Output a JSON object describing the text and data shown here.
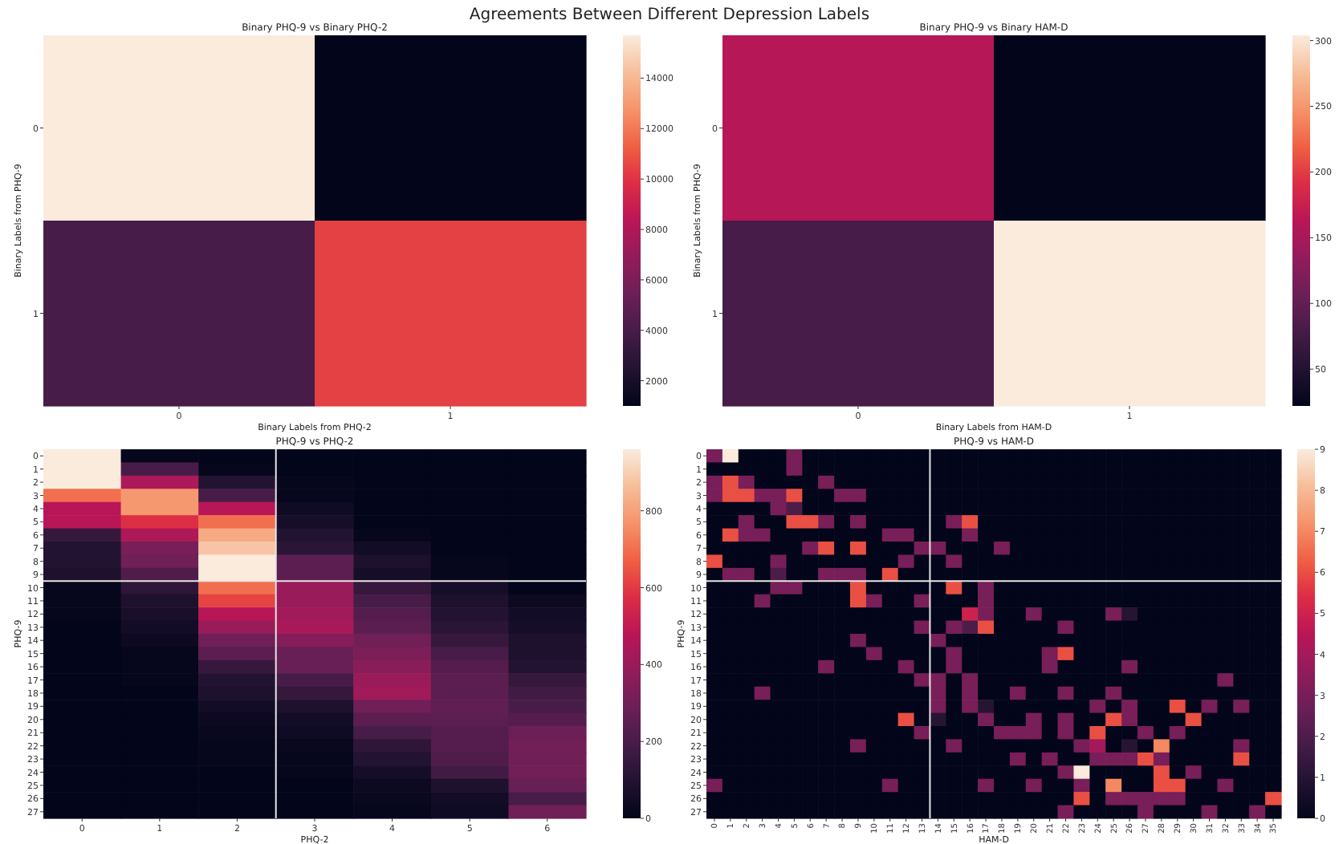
{
  "chart_data": [
    {
      "type": "other",
      "title": "Agreements Between Different Depression Labels"
    },
    {
      "type": "heatmap",
      "title": "Binary PHQ-9 vs Binary PHQ-2",
      "xlabel": "Binary Labels from PHQ-2",
      "ylabel": "Binary Labels from PHQ-9",
      "categories": [
        "0",
        "1"
      ],
      "y_categories": [
        "0",
        "1"
      ],
      "cells": [
        [
          15700,
          1000
        ],
        [
          4000,
          10400
        ]
      ],
      "clim": [
        1000,
        15700
      ],
      "cticks": [
        2000,
        4000,
        6000,
        8000,
        10000,
        12000,
        14000
      ]
    },
    {
      "type": "heatmap",
      "title": "Binary PHQ-9 vs Binary HAM-D",
      "xlabel": "Binary Labels from HAM-D",
      "ylabel": "Binary Labels from PHQ-9",
      "categories": [
        "0",
        "1"
      ],
      "y_categories": [
        "0",
        "1"
      ],
      "cells": [
        [
          160,
          22
        ],
        [
          80,
          304
        ]
      ],
      "clim": [
        22,
        304
      ],
      "cticks": [
        50,
        100,
        150,
        200,
        250,
        300
      ]
    },
    {
      "type": "heatmap",
      "title": "PHQ-9 vs PHQ-2",
      "xlabel": "PHQ-2",
      "ylabel": "PHQ-9",
      "categories": [
        "0",
        "1",
        "2",
        "3",
        "4",
        "5",
        "6"
      ],
      "y_categories": [
        "0",
        "1",
        "2",
        "3",
        "4",
        "5",
        "6",
        "7",
        "8",
        "9",
        "10",
        "11",
        "12",
        "13",
        "14",
        "15",
        "16",
        "17",
        "18",
        "19",
        "20",
        "21",
        "22",
        "23",
        "24",
        "25",
        "26",
        "27"
      ],
      "cells": [
        [
          960,
          10,
          0,
          0,
          0,
          0,
          0
        ],
        [
          960,
          200,
          10,
          0,
          0,
          0,
          0
        ],
        [
          960,
          450,
          100,
          10,
          0,
          0,
          0
        ],
        [
          700,
          780,
          200,
          10,
          0,
          0,
          0
        ],
        [
          480,
          780,
          480,
          40,
          0,
          0,
          0
        ],
        [
          480,
          580,
          700,
          60,
          0,
          0,
          0
        ],
        [
          150,
          450,
          820,
          100,
          10,
          0,
          0
        ],
        [
          100,
          320,
          880,
          120,
          50,
          0,
          0
        ],
        [
          100,
          300,
          960,
          250,
          80,
          10,
          0
        ],
        [
          80,
          220,
          960,
          250,
          60,
          10,
          0
        ],
        [
          10,
          130,
          700,
          400,
          150,
          60,
          0
        ],
        [
          10,
          80,
          620,
          400,
          200,
          80,
          30
        ],
        [
          10,
          70,
          480,
          420,
          230,
          100,
          50
        ],
        [
          0,
          50,
          400,
          440,
          250,
          120,
          60
        ],
        [
          0,
          30,
          300,
          350,
          300,
          150,
          80
        ],
        [
          0,
          10,
          250,
          280,
          330,
          200,
          80
        ],
        [
          0,
          10,
          150,
          280,
          360,
          230,
          100
        ],
        [
          0,
          10,
          100,
          200,
          400,
          250,
          150
        ],
        [
          0,
          0,
          80,
          150,
          420,
          250,
          180
        ],
        [
          0,
          0,
          50,
          80,
          300,
          260,
          200
        ],
        [
          0,
          0,
          30,
          50,
          250,
          250,
          230
        ],
        [
          0,
          0,
          20,
          40,
          200,
          230,
          290
        ],
        [
          0,
          0,
          10,
          20,
          130,
          230,
          300
        ],
        [
          0,
          0,
          10,
          10,
          100,
          220,
          300
        ],
        [
          0,
          0,
          0,
          10,
          60,
          180,
          300
        ],
        [
          0,
          0,
          0,
          0,
          30,
          80,
          280
        ],
        [
          0,
          0,
          0,
          0,
          20,
          50,
          200
        ],
        [
          0,
          0,
          0,
          0,
          10,
          40,
          300
        ]
      ],
      "clim": [
        0,
        960
      ],
      "cticks": [
        0,
        200,
        400,
        600,
        800
      ]
    },
    {
      "type": "heatmap",
      "title": "PHQ-9 vs HAM-D",
      "xlabel": "HAM-D",
      "ylabel": "PHQ-9",
      "categories": [
        "0",
        "1",
        "2",
        "3",
        "4",
        "5",
        "6",
        "7",
        "8",
        "9",
        "10",
        "11",
        "12",
        "13",
        "14",
        "15",
        "16",
        "17",
        "18",
        "19",
        "20",
        "21",
        "22",
        "23",
        "24",
        "25",
        "26",
        "27",
        "28",
        "29",
        "30",
        "31",
        "32",
        "33",
        "34",
        "35"
      ],
      "y_categories": [
        "0",
        "1",
        "2",
        "3",
        "4",
        "5",
        "6",
        "7",
        "8",
        "9",
        "10",
        "11",
        "12",
        "13",
        "14",
        "15",
        "16",
        "17",
        "18",
        "19",
        "20",
        "21",
        "22",
        "23",
        "24",
        "25",
        "26",
        "27"
      ],
      "cells": [
        [
          3,
          9,
          0,
          0,
          0,
          3,
          0,
          0,
          0,
          0,
          0,
          0,
          0,
          0,
          0,
          0,
          0,
          0,
          0,
          0,
          0,
          0,
          0,
          0,
          0,
          0,
          0,
          0,
          0,
          0,
          0,
          0,
          0,
          0,
          0,
          0
        ],
        [
          0,
          0,
          0,
          0,
          0,
          3,
          0,
          0,
          0,
          0,
          0,
          0,
          0,
          0,
          0,
          0,
          0,
          0,
          0,
          0,
          0,
          0,
          0,
          0,
          0,
          0,
          0,
          0,
          0,
          0,
          0,
          0,
          0,
          0,
          0,
          0
        ],
        [
          3,
          6,
          3,
          0,
          0,
          0,
          0,
          3,
          0,
          0,
          0,
          0,
          0,
          0,
          0,
          0,
          0,
          0,
          0,
          0,
          0,
          0,
          0,
          0,
          0,
          0,
          0,
          0,
          0,
          0,
          0,
          0,
          0,
          0,
          0,
          0
        ],
        [
          3,
          6,
          6,
          3,
          3,
          6,
          0,
          0,
          3,
          3,
          0,
          0,
          0,
          0,
          0,
          0,
          0,
          0,
          0,
          0,
          0,
          0,
          0,
          0,
          0,
          0,
          0,
          0,
          0,
          0,
          0,
          0,
          0,
          0,
          0,
          0
        ],
        [
          0,
          0,
          0,
          0,
          3,
          2,
          0,
          0,
          0,
          0,
          0,
          0,
          0,
          0,
          0,
          0,
          0,
          0,
          0,
          0,
          0,
          0,
          0,
          0,
          0,
          0,
          0,
          0,
          0,
          0,
          0,
          0,
          0,
          0,
          0,
          0
        ],
        [
          0,
          0,
          3,
          0,
          0,
          6,
          6,
          3,
          0,
          3,
          0,
          0,
          0,
          0,
          0,
          3,
          6,
          0,
          0,
          0,
          0,
          0,
          0,
          0,
          0,
          0,
          0,
          0,
          0,
          0,
          0,
          0,
          0,
          0,
          0,
          0
        ],
        [
          0,
          6,
          3,
          3,
          0,
          0,
          0,
          0,
          0,
          0,
          0,
          3,
          3,
          0,
          0,
          0,
          3,
          0,
          0,
          0,
          0,
          0,
          0,
          0,
          0,
          0,
          0,
          0,
          0,
          0,
          0,
          0,
          0,
          0,
          0,
          0
        ],
        [
          0,
          0,
          0,
          0,
          0,
          0,
          3,
          6,
          0,
          6,
          0,
          0,
          0,
          3,
          3,
          0,
          0,
          0,
          3,
          0,
          0,
          0,
          0,
          0,
          0,
          0,
          0,
          0,
          0,
          0,
          0,
          0,
          0,
          0,
          0,
          0
        ],
        [
          6,
          0,
          0,
          0,
          3,
          0,
          0,
          0,
          0,
          0,
          0,
          0,
          3,
          0,
          0,
          3,
          0,
          0,
          0,
          0,
          0,
          0,
          0,
          0,
          0,
          0,
          0,
          0,
          0,
          0,
          0,
          0,
          0,
          0,
          0,
          0
        ],
        [
          0,
          3,
          3,
          0,
          2,
          0,
          0,
          3,
          3,
          3,
          0,
          6,
          0,
          0,
          0,
          0,
          0,
          0,
          0,
          0,
          0,
          0,
          0,
          0,
          0,
          0,
          0,
          0,
          0,
          0,
          0,
          0,
          0,
          0,
          0,
          0
        ],
        [
          0,
          0,
          0,
          0,
          3,
          3,
          0,
          0,
          0,
          6,
          0,
          0,
          0,
          0,
          0,
          6,
          0,
          3,
          0,
          0,
          0,
          0,
          0,
          0,
          0,
          0,
          0,
          0,
          0,
          0,
          0,
          0,
          0,
          0,
          0,
          0
        ],
        [
          0,
          0,
          0,
          3,
          0,
          0,
          0,
          0,
          0,
          6,
          3,
          0,
          0,
          3,
          0,
          0,
          0,
          3,
          0,
          0,
          0,
          0,
          0,
          0,
          0,
          0,
          0,
          0,
          0,
          0,
          0,
          0,
          0,
          0,
          0,
          0
        ],
        [
          0,
          0,
          0,
          0,
          0,
          0,
          0,
          0,
          0,
          0,
          0,
          0,
          0,
          0,
          0,
          0,
          5,
          3,
          0,
          0,
          3,
          0,
          0,
          0,
          0,
          3,
          1,
          0,
          0,
          0,
          0,
          0,
          0,
          0,
          0,
          0
        ],
        [
          0,
          0,
          0,
          0,
          0,
          0,
          0,
          0,
          0,
          0,
          0,
          0,
          0,
          3,
          0,
          3,
          2,
          6,
          0,
          0,
          0,
          0,
          3,
          0,
          0,
          0,
          0,
          0,
          0,
          0,
          0,
          0,
          0,
          0,
          0,
          0
        ],
        [
          0,
          0,
          0,
          0,
          0,
          0,
          0,
          0,
          0,
          3,
          0,
          0,
          0,
          0,
          3,
          0,
          0,
          0,
          0,
          0,
          0,
          0,
          0,
          0,
          0,
          0,
          0,
          0,
          0,
          0,
          0,
          0,
          0,
          0,
          0,
          0
        ],
        [
          0,
          0,
          0,
          0,
          0,
          0,
          0,
          0,
          0,
          0,
          3,
          0,
          0,
          0,
          0,
          3,
          0,
          0,
          0,
          0,
          0,
          3,
          6,
          0,
          0,
          0,
          0,
          0,
          0,
          0,
          0,
          0,
          0,
          0,
          0,
          0
        ],
        [
          0,
          0,
          0,
          0,
          0,
          0,
          0,
          3,
          0,
          0,
          0,
          0,
          3,
          0,
          0,
          3,
          0,
          0,
          0,
          0,
          0,
          3,
          0,
          0,
          0,
          0,
          3,
          0,
          0,
          0,
          0,
          0,
          0,
          0,
          0,
          0
        ],
        [
          0,
          0,
          0,
          0,
          0,
          0,
          0,
          0,
          0,
          0,
          0,
          0,
          0,
          3,
          3,
          0,
          3,
          0,
          0,
          0,
          0,
          0,
          0,
          0,
          0,
          0,
          0,
          0,
          0,
          0,
          0,
          0,
          3,
          0,
          0,
          0
        ],
        [
          0,
          0,
          0,
          3,
          0,
          0,
          0,
          0,
          0,
          0,
          0,
          0,
          0,
          0,
          3,
          0,
          3,
          0,
          0,
          3,
          0,
          0,
          3,
          0,
          0,
          3,
          0,
          0,
          0,
          0,
          0,
          0,
          0,
          0,
          0,
          0
        ],
        [
          0,
          0,
          0,
          0,
          0,
          0,
          0,
          0,
          0,
          0,
          0,
          0,
          0,
          0,
          3,
          0,
          3,
          1,
          0,
          0,
          0,
          0,
          0,
          0,
          3,
          0,
          3,
          0,
          0,
          6,
          0,
          3,
          0,
          3,
          0,
          0
        ],
        [
          0,
          0,
          0,
          0,
          0,
          0,
          0,
          0,
          0,
          0,
          0,
          0,
          6,
          0,
          1,
          0,
          0,
          3,
          0,
          0,
          3,
          0,
          3,
          0,
          0,
          6,
          3,
          0,
          0,
          0,
          6,
          0,
          0,
          0,
          0,
          0
        ],
        [
          0,
          0,
          0,
          0,
          0,
          0,
          0,
          0,
          0,
          0,
          0,
          0,
          0,
          3,
          0,
          0,
          0,
          0,
          3,
          3,
          3,
          0,
          3,
          0,
          6,
          0,
          0,
          3,
          0,
          3,
          0,
          0,
          0,
          0,
          0,
          0
        ],
        [
          0,
          0,
          0,
          0,
          0,
          0,
          0,
          0,
          0,
          3,
          0,
          0,
          0,
          0,
          0,
          3,
          0,
          0,
          0,
          0,
          0,
          0,
          0,
          3,
          4,
          0,
          1,
          0,
          7,
          0,
          0,
          0,
          0,
          3,
          0,
          0
        ],
        [
          0,
          0,
          0,
          0,
          0,
          0,
          0,
          0,
          0,
          0,
          0,
          0,
          0,
          0,
          0,
          0,
          0,
          0,
          0,
          3,
          0,
          3,
          0,
          0,
          3,
          3,
          3,
          6,
          3,
          0,
          0,
          0,
          0,
          6,
          0,
          0
        ],
        [
          0,
          0,
          0,
          0,
          0,
          0,
          0,
          0,
          0,
          0,
          0,
          0,
          0,
          0,
          0,
          0,
          0,
          0,
          0,
          0,
          0,
          0,
          3,
          9,
          0,
          0,
          0,
          0,
          6,
          0,
          3,
          0,
          0,
          0,
          0,
          0
        ],
        [
          3,
          0,
          0,
          0,
          0,
          0,
          0,
          0,
          0,
          0,
          0,
          3,
          0,
          0,
          0,
          0,
          0,
          3,
          0,
          0,
          3,
          0,
          0,
          3,
          0,
          7,
          0,
          0,
          6,
          6,
          0,
          0,
          3,
          0,
          0,
          0
        ],
        [
          0,
          0,
          0,
          0,
          0,
          0,
          0,
          0,
          0,
          0,
          0,
          0,
          0,
          0,
          0,
          0,
          0,
          0,
          0,
          0,
          0,
          0,
          0,
          6,
          0,
          3,
          3,
          3,
          3,
          3,
          0,
          0,
          0,
          0,
          0,
          6
        ],
        [
          0,
          0,
          0,
          0,
          0,
          0,
          0,
          0,
          0,
          0,
          0,
          0,
          0,
          0,
          0,
          0,
          0,
          0,
          0,
          0,
          0,
          0,
          3,
          0,
          0,
          0,
          0,
          3,
          0,
          0,
          0,
          3,
          0,
          0,
          3,
          0
        ]
      ],
      "clim": [
        0,
        9
      ],
      "cticks": [
        0,
        1,
        2,
        3,
        4,
        5,
        6,
        7,
        8,
        9
      ]
    }
  ]
}
